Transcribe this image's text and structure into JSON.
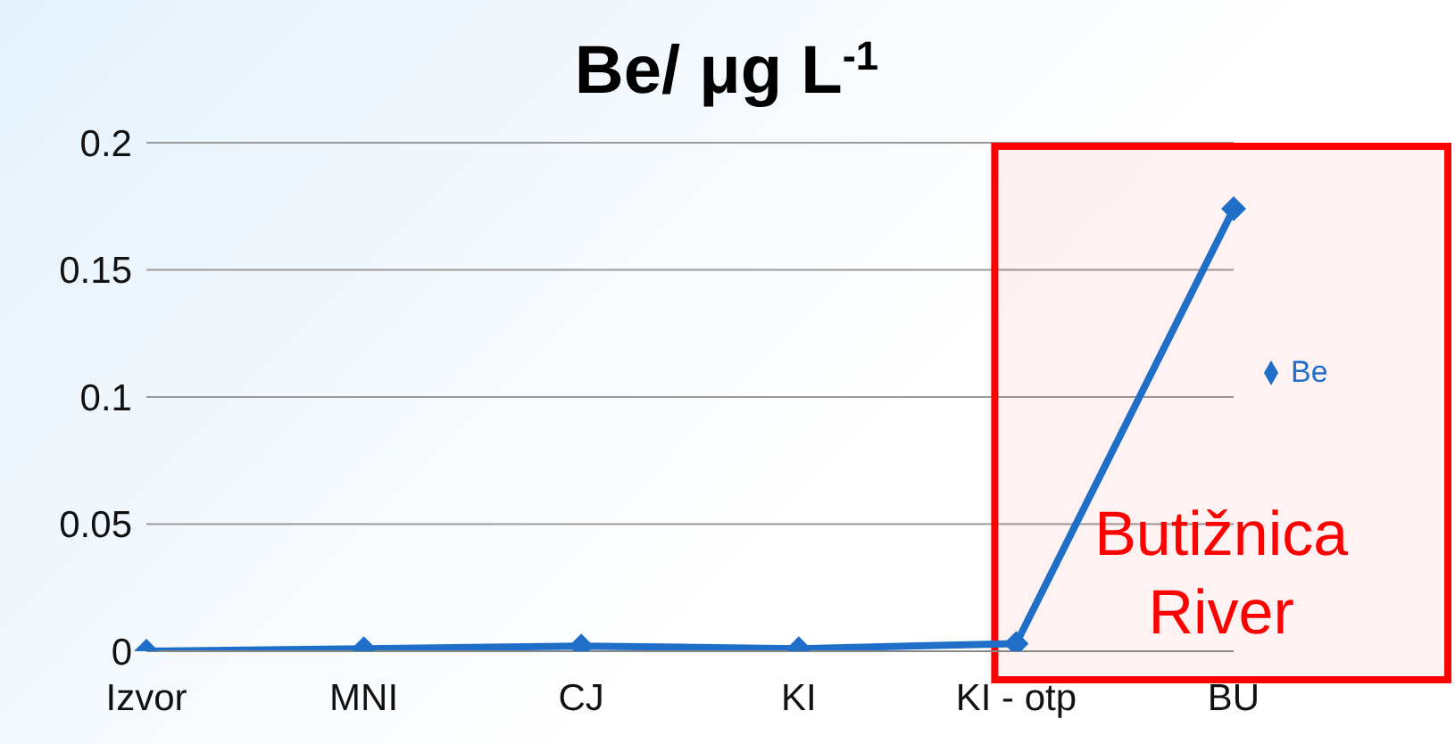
{
  "chart_data": {
    "type": "line",
    "title": "Be/ μg L$^{-1}$",
    "categories": [
      "Izvor",
      "MNI",
      "CJ",
      "KI",
      "KI - otp",
      "BU"
    ],
    "series": [
      {
        "name": "Be",
        "color": "#1f6fc8",
        "values": [
          0,
          0.001,
          0.002,
          0.001,
          0.003,
          0.174
        ]
      }
    ],
    "ylim": [
      0,
      0.2
    ],
    "yticks": [
      0,
      0.05,
      0.1,
      0.15,
      0.2
    ],
    "grid": "y",
    "legend": "right",
    "marker": "diamond",
    "bands": [
      {
        "axis": "x",
        "from": "KI - otp",
        "to": "BU",
        "label": "Butižnica River",
        "color": "#ff0000"
      }
    ]
  }
}
